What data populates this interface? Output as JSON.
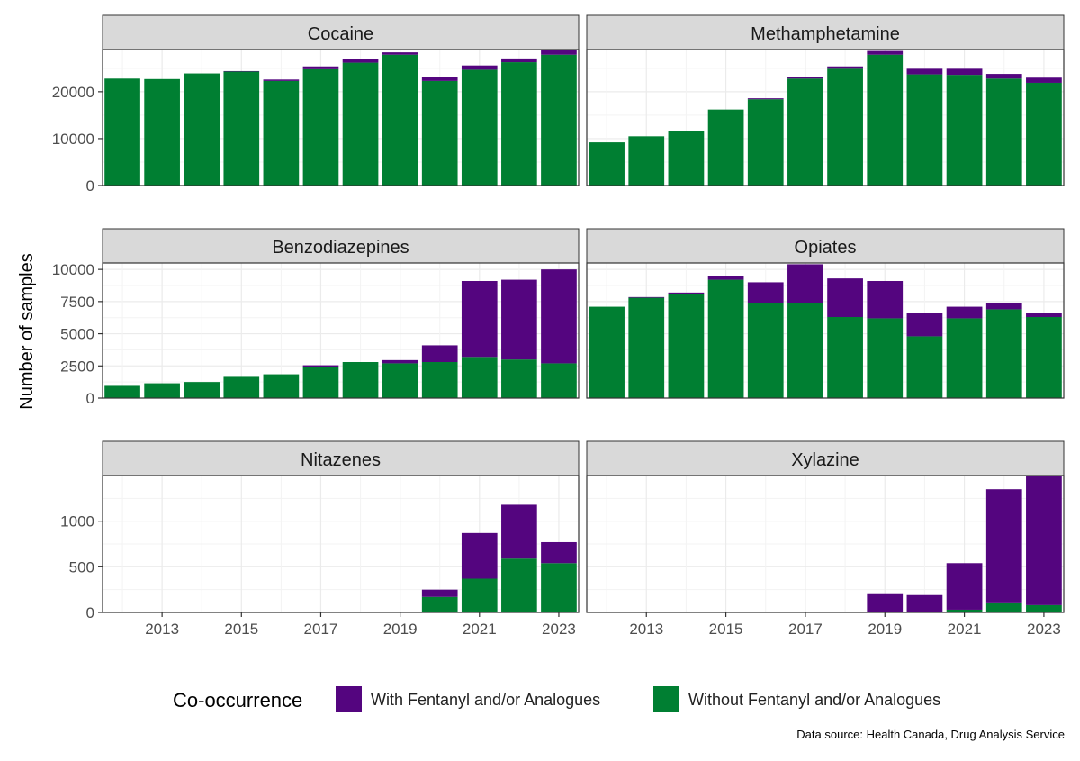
{
  "ylabel": "Number of samples",
  "legend": {
    "title": "Co-occurrence",
    "items": [
      {
        "label": "With Fentanyl and/or Analogues",
        "color": "#54057f"
      },
      {
        "label": "Without Fentanyl and/or Analogues",
        "color": "#007f32"
      }
    ]
  },
  "source": "Data source: Health Canada, Drug Analysis Service",
  "colors": {
    "with_fentanyl": "#54057f",
    "without_fentanyl": "#007f32",
    "strip_bg": "#d9d9d9",
    "grid": "#ebebeb",
    "panel_border": "#333333"
  },
  "chart_data": {
    "type": "bar",
    "stacked": true,
    "layout": "facet-grid-3x2",
    "grid": true,
    "legend_position": "bottom",
    "categories": [
      "2012",
      "2013",
      "2014",
      "2015",
      "2016",
      "2017",
      "2018",
      "2019",
      "2020",
      "2021",
      "2022",
      "2023"
    ],
    "x_tick_labels": [
      "2013",
      "2015",
      "2017",
      "2019",
      "2021",
      "2023"
    ],
    "series_names": [
      "With Fentanyl and/or Analogues",
      "Without Fentanyl and/or Analogues"
    ],
    "panels": [
      {
        "title": "Cocaine",
        "ylim": [
          0,
          29000
        ],
        "y_ticks": [
          0,
          10000,
          20000
        ],
        "y_tick_labels": [
          "0",
          "10000",
          "20000"
        ],
        "without": [
          22800,
          22700,
          23900,
          24300,
          22300,
          24800,
          26200,
          27900,
          22300,
          24700,
          26300,
          27900
        ],
        "with": [
          0,
          0,
          0,
          100,
          300,
          600,
          800,
          500,
          800,
          900,
          800,
          1000
        ]
      },
      {
        "title": "Methamphetamine",
        "ylim": [
          0,
          29000
        ],
        "y_ticks": [
          0,
          10000,
          20000
        ],
        "y_tick_labels": [
          "0",
          "10000",
          "20000"
        ],
        "without": [
          9200,
          10500,
          11700,
          16200,
          18400,
          22800,
          24900,
          27900,
          23700,
          23600,
          22800,
          21900
        ],
        "with": [
          0,
          0,
          0,
          0,
          200,
          300,
          500,
          800,
          1200,
          1300,
          1000,
          1100
        ]
      },
      {
        "title": "Benzodiazepines",
        "ylim": [
          0,
          10500
        ],
        "y_ticks": [
          0,
          2500,
          5000,
          7500,
          10000
        ],
        "y_tick_labels": [
          "0",
          "2500",
          "5000",
          "7500",
          "10000"
        ],
        "without": [
          950,
          1150,
          1250,
          1650,
          1850,
          2450,
          2800,
          2700,
          2800,
          3200,
          3000,
          2700
        ],
        "with": [
          0,
          0,
          0,
          0,
          0,
          100,
          0,
          250,
          1300,
          5900,
          6200,
          7300
        ]
      },
      {
        "title": "Opiates",
        "ylim": [
          0,
          10500
        ],
        "y_ticks": [
          0,
          2500,
          5000,
          7500,
          10000
        ],
        "y_tick_labels": [
          "0",
          "2500",
          "5000",
          "7500",
          "10000"
        ],
        "without": [
          7100,
          7800,
          8100,
          9200,
          7400,
          7400,
          6300,
          6200,
          4800,
          6200,
          6900,
          6300
        ],
        "with": [
          0,
          50,
          100,
          300,
          1600,
          3000,
          3000,
          2900,
          1800,
          900,
          500,
          300
        ]
      },
      {
        "title": "Nitazenes",
        "ylim": [
          0,
          1500
        ],
        "y_ticks": [
          0,
          500,
          1000
        ],
        "y_tick_labels": [
          "0",
          "500",
          "1000"
        ],
        "without": [
          0,
          0,
          0,
          0,
          0,
          0,
          0,
          0,
          170,
          370,
          590,
          540
        ],
        "with": [
          0,
          0,
          0,
          0,
          0,
          0,
          0,
          0,
          80,
          500,
          590,
          230
        ]
      },
      {
        "title": "Xylazine",
        "ylim": [
          0,
          1500
        ],
        "y_ticks": [
          0,
          500,
          1000
        ],
        "y_tick_labels": [
          "0",
          "500",
          "1000"
        ],
        "without": [
          0,
          0,
          0,
          5,
          0,
          0,
          0,
          0,
          0,
          30,
          100,
          80
        ],
        "with": [
          0,
          0,
          0,
          0,
          0,
          0,
          0,
          200,
          190,
          510,
          1250,
          1420
        ]
      }
    ]
  }
}
